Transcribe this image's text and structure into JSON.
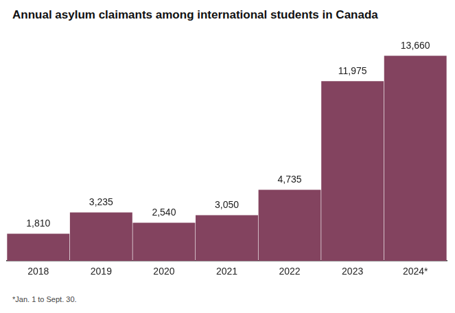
{
  "chart_data": {
    "type": "bar",
    "title": "Annual asylum claimants among international students in Canada",
    "categories": [
      "2018",
      "2019",
      "2020",
      "2021",
      "2022",
      "2023",
      "2024*"
    ],
    "values": [
      1810,
      3235,
      2540,
      3050,
      4735,
      11975,
      13660
    ],
    "value_labels": [
      "1,810",
      "3,235",
      "2,540",
      "3,050",
      "4,735",
      "11,975",
      "13,660"
    ],
    "color": "#83435f",
    "ylim": [
      0,
      15000
    ],
    "grid": false,
    "data_labels": true,
    "tick_labels": "x",
    "annotation": "*Jan. 1 to Sept. 30."
  }
}
